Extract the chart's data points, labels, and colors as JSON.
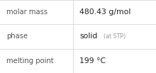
{
  "rows": [
    {
      "label": "molar mass",
      "value_main": "480.43 g/mol",
      "value_small": ""
    },
    {
      "label": "phase",
      "value_main": "solid",
      "value_small": "  (at STP)"
    },
    {
      "label": "melting point",
      "value_main": "199 °C",
      "value_small": ""
    }
  ],
  "col_split": 0.47,
  "background_color": "#ffffff",
  "grid_color": "#d0d0d0",
  "label_color": "#555555",
  "value_color": "#222222",
  "small_color": "#999999",
  "label_fontsize": 7.2,
  "value_fontsize": 7.8,
  "small_fontsize": 5.8,
  "figwidth": 2.2,
  "figheight": 1.03,
  "dpi": 100
}
